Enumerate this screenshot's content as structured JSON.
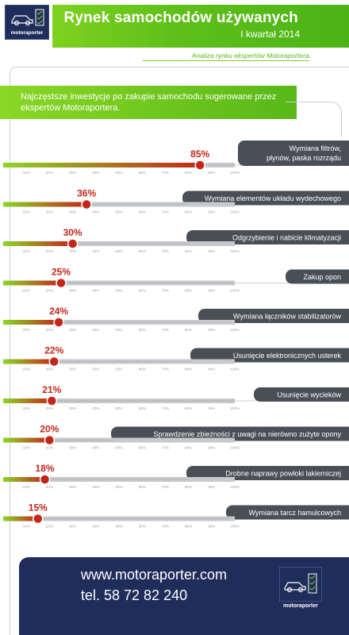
{
  "header": {
    "logo_text": "motoraporter",
    "title": "Rynek samochodów używanych",
    "subtitle": "I kwartał 2014",
    "analysis": "Analiza rynku ekspertów Motoraportera."
  },
  "intro": {
    "text": "Najczęstsze inwestycje po zakupie samochodu sugerowane przez ekspertów Motoraportera."
  },
  "chart_data": {
    "type": "bar",
    "orientation": "horizontal",
    "categories": [
      "Wymiana filtrów, płynów, paska rozrządu",
      "Wymiana elementów układu wydechowego",
      "Odgrzybienie i nabicie klimatyzacji",
      "Zakup opon",
      "Wymiana łączników stabilizatorów",
      "Usunięcie elektronicznych  usterek",
      "Usunięcie wycieków",
      "Sprawdzenie zbieżności z uwagi na nierówno zużyte opony",
      "Drobne naprawy powłoki lakierniczej",
      "Wymiana tarcz hamulcowych"
    ],
    "values": [
      85,
      36,
      30,
      25,
      24,
      22,
      21,
      20,
      18,
      15
    ],
    "value_labels": [
      "85%",
      "36%",
      "30%",
      "25%",
      "24%",
      "22%",
      "21%",
      "20%",
      "18%",
      "15%"
    ],
    "tick_labels": [
      "10%",
      "20%",
      "30%",
      "40%",
      "50%",
      "60%",
      "70%",
      "80%",
      "90%",
      "100%"
    ],
    "xlim": [
      0,
      100
    ],
    "colors": {
      "fill_start": "#8ad726",
      "fill_end": "#c4261a",
      "track": "#c7c9cc",
      "label_box": "#4a4f55",
      "marker": "#c4261a"
    }
  },
  "footer": {
    "website": "www.motoraporter.com",
    "phone": "tel. 58 72 82 240",
    "logo_text": "motoraporter"
  }
}
